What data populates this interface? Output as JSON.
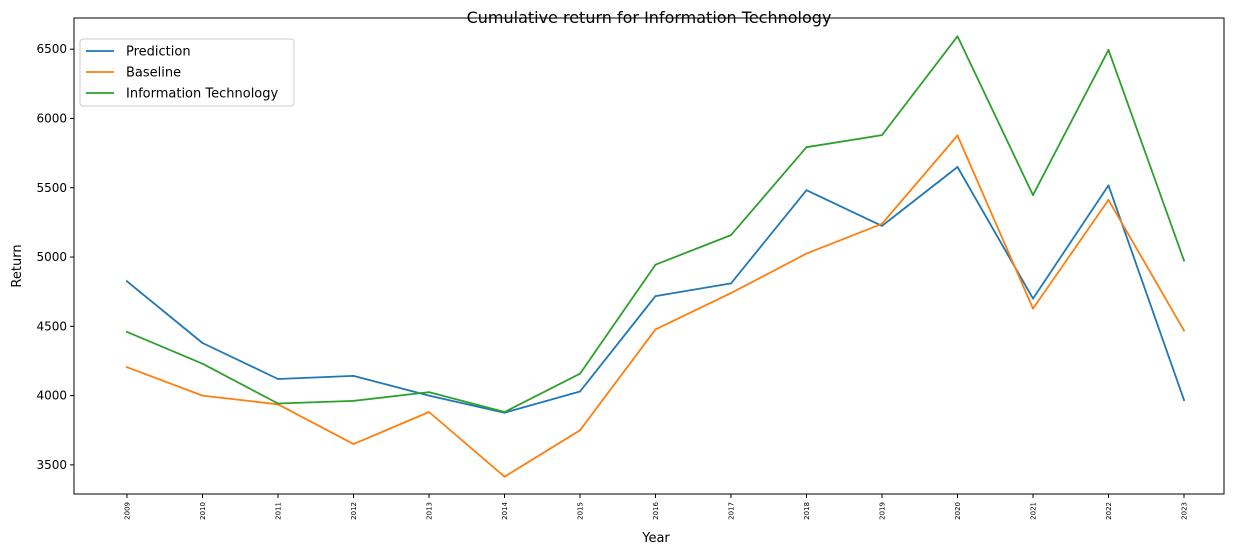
{
  "chart_data": {
    "type": "line",
    "title": "Cumulative return for Information Technology",
    "xlabel": "Year",
    "ylabel": "Return",
    "categories": [
      "2009",
      "2010",
      "2011",
      "2012",
      "2013",
      "2014",
      "2015",
      "2016",
      "2017",
      "2018",
      "2019",
      "2020",
      "2021",
      "2022",
      "2023"
    ],
    "ylim": [
      3290,
      6725
    ],
    "yticks": [
      3500,
      4000,
      4500,
      5000,
      5500,
      6000,
      6500
    ],
    "grid": false,
    "legend_position": "top-left",
    "series": [
      {
        "name": "Prediction",
        "color": "#1f77b4",
        "values": [
          4825,
          4380,
          4120,
          4142,
          4000,
          3877,
          4030,
          4718,
          4810,
          5482,
          5225,
          5650,
          4700,
          5517,
          3968
        ]
      },
      {
        "name": "Baseline",
        "color": "#ff7f0e",
        "values": [
          4205,
          4000,
          3937,
          3650,
          3882,
          3415,
          3750,
          4478,
          4740,
          5025,
          5240,
          5877,
          4628,
          5412,
          4470
        ]
      },
      {
        "name": "Information Technology",
        "color": "#2ca02c",
        "values": [
          4460,
          4230,
          3943,
          3962,
          4025,
          3882,
          4158,
          4945,
          5158,
          5793,
          5880,
          6593,
          5447,
          6495,
          4975
        ]
      }
    ]
  }
}
